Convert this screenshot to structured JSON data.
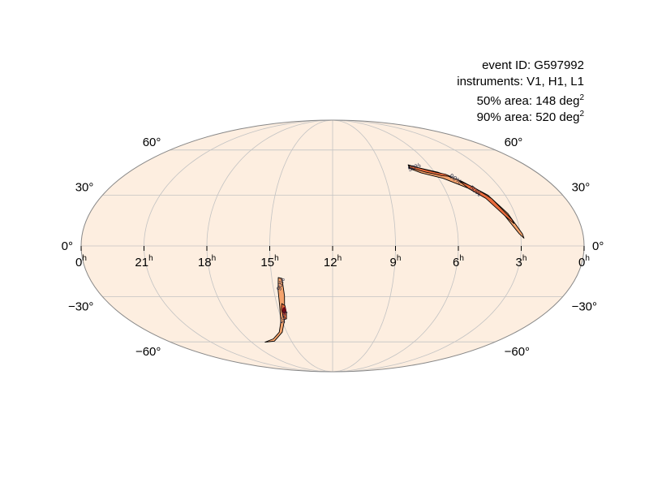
{
  "chart_data": {
    "type": "skymap",
    "projection": "mollweide",
    "event_id_line": "event ID: G597992",
    "instruments_line": "instruments: V1, H1, L1",
    "area50": {
      "prefix": "50% area: 148 deg",
      "unit_exp": "2",
      "value_deg2": 148
    },
    "area90": {
      "prefix": "90% area: 520 deg",
      "unit_exp": "2",
      "value_deg2": 520
    },
    "ra_ticks": [
      {
        "ra_hours": 24,
        "major": "0",
        "sup": "h",
        "side": "left"
      },
      {
        "ra_hours": 21,
        "major": "21",
        "sup": "h"
      },
      {
        "ra_hours": 18,
        "major": "18",
        "sup": "h"
      },
      {
        "ra_hours": 15,
        "major": "15",
        "sup": "h"
      },
      {
        "ra_hours": 12,
        "major": "12",
        "sup": "h"
      },
      {
        "ra_hours": 9,
        "major": "9",
        "sup": "h"
      },
      {
        "ra_hours": 6,
        "major": "6",
        "sup": "h"
      },
      {
        "ra_hours": 3,
        "major": "3",
        "sup": "h"
      },
      {
        "ra_hours": 0,
        "major": "0",
        "sup": "h",
        "side": "right"
      }
    ],
    "dec_ticks": [
      {
        "dec": 60,
        "label": "60°"
      },
      {
        "dec": 30,
        "label": "30°"
      },
      {
        "dec": 0,
        "label": "0°"
      },
      {
        "dec": -30,
        "label": "−30°"
      },
      {
        "dec": -60,
        "label": "−60°"
      }
    ],
    "contour_labels": [
      "50%",
      "90%"
    ],
    "regions": [
      {
        "name": "northern arc",
        "path90": [
          [
            7.28,
            49.5
          ],
          [
            6.8,
            47.5
          ],
          [
            5.8,
            44.5
          ],
          [
            4.8,
            38.5
          ],
          [
            3.9,
            30
          ],
          [
            3.35,
            19
          ],
          [
            2.9,
            7
          ],
          [
            2.85,
            4.5
          ],
          [
            3.05,
            7
          ],
          [
            3.55,
            18
          ],
          [
            4.05,
            27.5
          ],
          [
            4.75,
            34.5
          ],
          [
            5.75,
            40.5
          ],
          [
            6.8,
            44
          ],
          [
            7.35,
            47
          ]
        ],
        "path50": [
          [
            7.25,
            49
          ],
          [
            6.7,
            47.2
          ],
          [
            5.9,
            44.4
          ],
          [
            5.45,
            43.2
          ],
          [
            5.25,
            41.8
          ],
          [
            5.7,
            42.2
          ],
          [
            6.55,
            44.7
          ],
          [
            7.3,
            47.5
          ]
        ],
        "path50b": [
          [
            4.95,
            38.8
          ],
          [
            4.4,
            35
          ],
          [
            3.8,
            27.8
          ],
          [
            3.25,
            15.5
          ],
          [
            3.2,
            13
          ],
          [
            3.5,
            17
          ],
          [
            4.1,
            28
          ],
          [
            4.7,
            34
          ]
        ]
      },
      {
        "name": "southern arc",
        "path90": [
          [
            14.5,
            -19
          ],
          [
            14.5,
            -29.5
          ],
          [
            14.68,
            -39
          ],
          [
            14.88,
            -45.5
          ],
          [
            15.3,
            -53
          ],
          [
            16.25,
            -59.5
          ],
          [
            17.0,
            -60.2
          ],
          [
            16.2,
            -57.8
          ],
          [
            15.5,
            -53
          ],
          [
            15.1,
            -46
          ],
          [
            14.88,
            -36
          ],
          [
            14.78,
            -26
          ],
          [
            14.68,
            -18.5
          ]
        ],
        "path50": [
          [
            14.58,
            -35.5
          ],
          [
            14.6,
            -40
          ],
          [
            14.7,
            -44
          ],
          [
            14.85,
            -44.5
          ],
          [
            14.83,
            -38
          ],
          [
            14.73,
            -34.2
          ]
        ],
        "hot": [
          [
            14.62,
            -37
          ],
          [
            14.68,
            -40.5
          ],
          [
            14.78,
            -41
          ],
          [
            14.78,
            -37.5
          ]
        ]
      }
    ],
    "colors": {
      "fill90": "#f5a36c",
      "fill50": "#e96b3c",
      "hot": "#c8102e",
      "core": "#6e0a16",
      "background": "#fdeee0",
      "grid": "#c3c3c3",
      "outline": "#888888"
    }
  }
}
